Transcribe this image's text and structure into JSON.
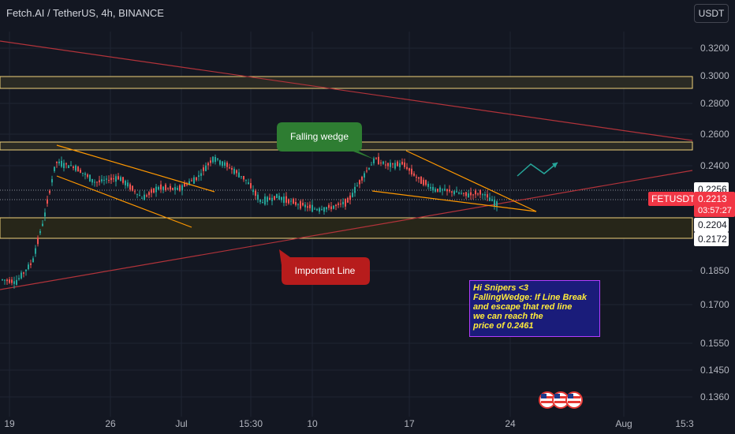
{
  "header": {
    "title": "Fetch.AI / TetherUS, 4h, BINANCE",
    "currency": "USDT"
  },
  "colors": {
    "background": "#131722",
    "up": "#26a69a",
    "down": "#ef5350",
    "zone_line": "#f0d27a",
    "trendline_red": "#b2333a",
    "wedge_orange": "#ff9800",
    "projection_green": "#26a69a",
    "last_price": "#f23645"
  },
  "annotations": {
    "falling_wedge": "Falling wedge",
    "important_line": "Important Line",
    "note_lines": [
      "Hi Snipers <3",
      "FallingWedge: If Line Break",
      "and escape that red line",
      "we can reach the",
      "price of 0.2461"
    ]
  },
  "chart_data": {
    "type": "candlestick",
    "symbol": "FETUSDT",
    "exchange": "BINANCE",
    "timeframe": "4h",
    "y_scale": "log",
    "ylim": [
      0.131,
      0.34
    ],
    "price_ticks": [
      "0.3200",
      "0.3000",
      "0.2800",
      "0.2600",
      "0.2400",
      "0.1850",
      "0.1700",
      "0.1550",
      "0.1450",
      "0.1360"
    ],
    "x_ticks": [
      "19",
      "26",
      "Jul",
      "15:30",
      "10",
      "17",
      "24",
      "Aug",
      "15:3"
    ],
    "last_price": {
      "symbol": "FETUSDT",
      "price": "0.2213",
      "countdown": "03:57:27"
    },
    "price_markers": [
      "0.2256",
      "0.2204",
      "0.2172"
    ],
    "zones": [
      {
        "top": 0.3,
        "bottom": 0.292
      },
      {
        "top": 0.254,
        "bottom": 0.25
      },
      {
        "top": 0.2204,
        "bottom": 0.2172
      }
    ],
    "ohlc_sample": [
      {
        "t": "19",
        "o": 0.182,
        "h": 0.186,
        "l": 0.179,
        "c": 0.184
      },
      {
        "t": "21",
        "o": 0.19,
        "h": 0.2,
        "l": 0.186,
        "c": 0.198
      },
      {
        "t": "23",
        "o": 0.243,
        "h": 0.254,
        "l": 0.236,
        "c": 0.247
      },
      {
        "t": "26",
        "o": 0.236,
        "h": 0.242,
        "l": 0.23,
        "c": 0.234
      },
      {
        "t": "Jul",
        "o": 0.228,
        "h": 0.234,
        "l": 0.218,
        "c": 0.231
      },
      {
        "t": "15:30",
        "o": 0.246,
        "h": 0.252,
        "l": 0.24,
        "c": 0.243
      },
      {
        "t": "10",
        "o": 0.224,
        "h": 0.228,
        "l": 0.221,
        "c": 0.225
      },
      {
        "t": "14",
        "o": 0.244,
        "h": 0.255,
        "l": 0.236,
        "c": 0.246
      },
      {
        "t": "17",
        "o": 0.24,
        "h": 0.248,
        "l": 0.236,
        "c": 0.242
      },
      {
        "t": "22",
        "o": 0.2225,
        "h": 0.226,
        "l": 0.2195,
        "c": 0.2213
      }
    ]
  }
}
